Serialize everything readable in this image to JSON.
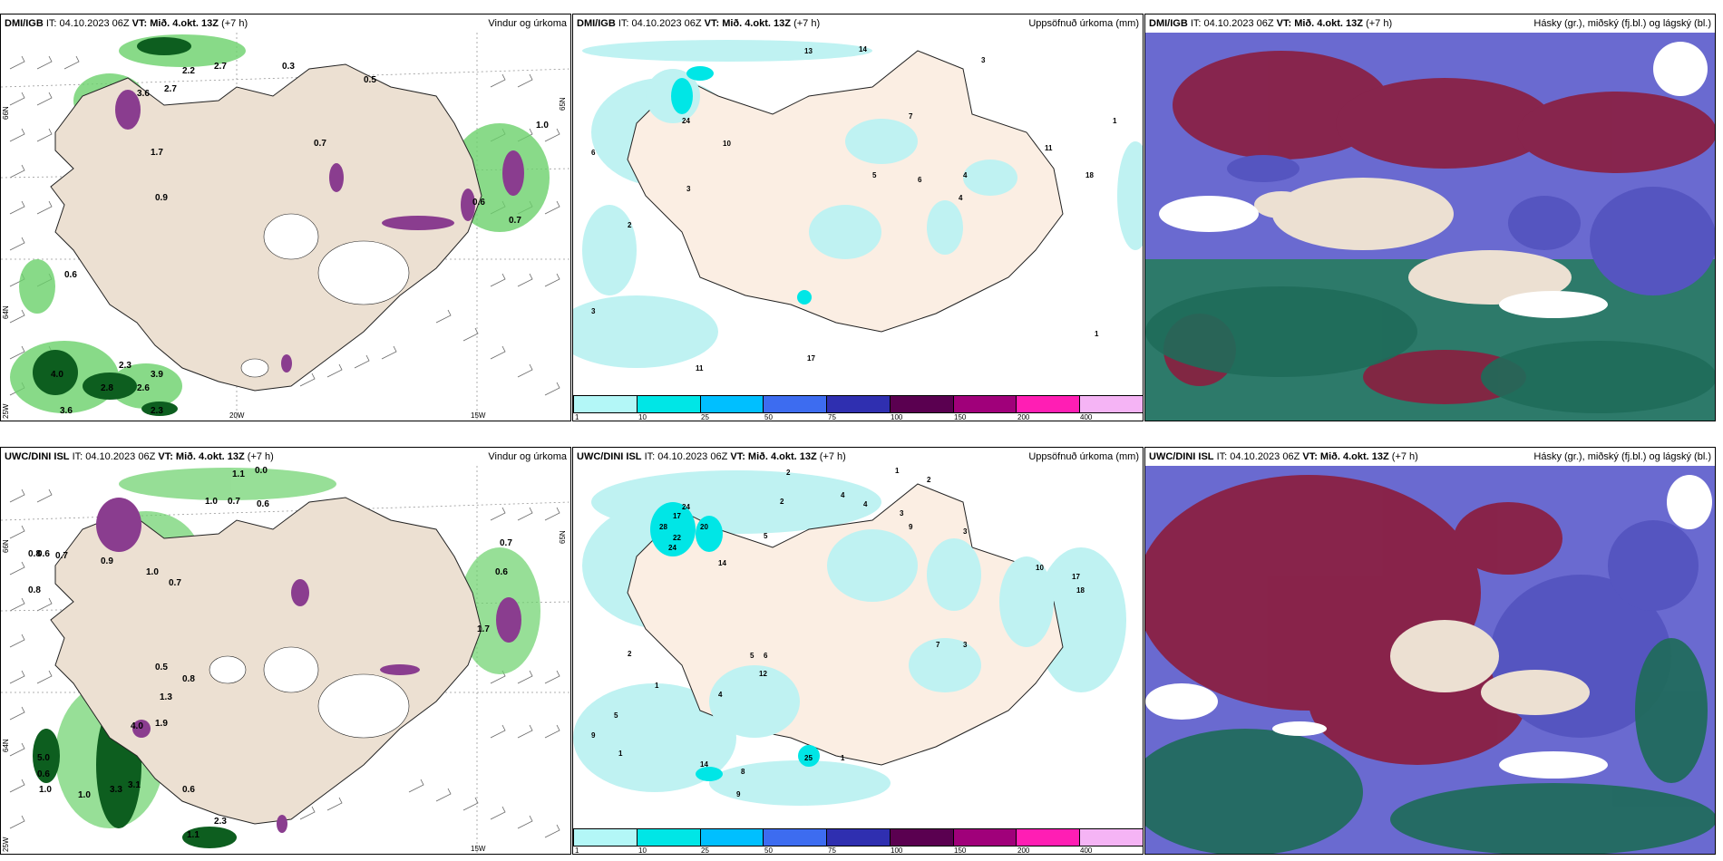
{
  "panels": {
    "top_left": {
      "model": "DMI/IGB",
      "it": "IT: 04.10.2023 06Z",
      "vt_label": "VT:",
      "vt_value": "Mið. 4.okt. 13Z",
      "lead": "(+7 h)",
      "product": "Vindur og úrkoma",
      "values": [
        "0.3",
        "0.5",
        "1.0",
        "2.2",
        "2.7",
        "3.6",
        "2.7",
        "1.7",
        "0.9",
        "0.6",
        "0.6",
        "0.7",
        "4.0",
        "2.8",
        "2.3",
        "3.6",
        "2.6",
        "3.9",
        "2.3",
        "0.7"
      ],
      "lat_labels": [
        "66N",
        "65N",
        "64N"
      ],
      "lon_labels": [
        "20W",
        "15W"
      ],
      "axis_left": "25W"
    },
    "top_middle": {
      "model": "DMI/IGB",
      "it": "IT: 04.10.2023 06Z",
      "vt_label": "VT:",
      "vt_value": "Mið. 4.okt. 13Z",
      "lead": "(+7 h)",
      "product": "Uppsöfnuð úrkoma (mm)",
      "values": [
        "13",
        "14",
        "3",
        "24",
        "10",
        "6",
        "3",
        "2",
        "5",
        "6",
        "4",
        "4",
        "11",
        "18",
        "7",
        "1",
        "3",
        "1",
        "11",
        "17"
      ]
    },
    "top_right": {
      "model": "DMI/IGB",
      "it": "IT: 04.10.2023 06Z",
      "vt_label": "VT:",
      "vt_value": "Mið. 4.okt. 13Z",
      "lead": "(+7 h)",
      "product": "Hásky (gr.), miðský (fj.bl.) og lágský (bl.)"
    },
    "bottom_left": {
      "model": "UWC/DINI ISL",
      "it": "IT: 04.10.2023 06Z",
      "vt_label": "VT:",
      "vt_value": "Mið. 4.okt. 13Z",
      "lead": "(+7 h)",
      "product": "Vindur og úrkoma",
      "values": [
        "1.1",
        "0.0",
        "1.0",
        "0.7",
        "0.6",
        "0.8",
        "0.6",
        "0.7",
        "0.9",
        "1.0",
        "0.7",
        "0.8",
        "0.5",
        "0.8",
        "1.3",
        "4.0",
        "1.9",
        "5.0",
        "0.6",
        "1.0",
        "1.0",
        "3.3",
        "3.1",
        "0.6",
        "1.1",
        "2.3",
        "1.7",
        "0.6",
        "0.7"
      ],
      "lat_labels": [
        "66N",
        "65N",
        "64N"
      ],
      "lon_labels": [
        "15W"
      ],
      "axis_left": "25W"
    },
    "bottom_middle": {
      "model": "UWC/DINI ISL",
      "it": "IT: 04.10.2023 06Z",
      "vt_label": "VT:",
      "vt_value": "Mið. 4.okt. 13Z",
      "lead": "(+7 h)",
      "product": "Uppsöfnuð úrkoma (mm)",
      "values": [
        "2",
        "1",
        "2",
        "2",
        "4",
        "4",
        "3",
        "24",
        "17",
        "28",
        "20",
        "22",
        "24",
        "14",
        "5",
        "9",
        "3",
        "10",
        "17",
        "18",
        "12",
        "5",
        "6",
        "1",
        "14",
        "8",
        "9",
        "4",
        "25",
        "7",
        "3",
        "1",
        "2",
        "5",
        "9",
        "1"
      ]
    },
    "bottom_right": {
      "model": "UWC/DINI ISL",
      "it": "IT: 04.10.2023 06Z",
      "vt_label": "VT:",
      "vt_value": "Mið. 4.okt. 13Z",
      "lead": "(+7 h)",
      "product": "Hásky (gr.), miðský (fj.bl.) og lágský (bl.)"
    }
  },
  "legend": {
    "ticks": [
      "1",
      "10",
      "25",
      "50",
      "75",
      "100",
      "150",
      "200",
      "400"
    ],
    "colors": [
      "#b3f7f7",
      "#00e6e6",
      "#00bfff",
      "#3d6cf0",
      "#2f2fb0",
      "#5a0050",
      "#a0007a",
      "#ff1eb4",
      "#f5b4f5"
    ]
  },
  "colors": {
    "land": "#ece0d2",
    "precip_light": "#bff2f2",
    "precip_green": "#6bd16b",
    "dark_green": "#0d5e1f",
    "purple": "#8a3d8f",
    "cloud_high": "#8b1e3f",
    "cloud_mid": "#5555c0",
    "cloud_low": "#1f6b5a"
  }
}
